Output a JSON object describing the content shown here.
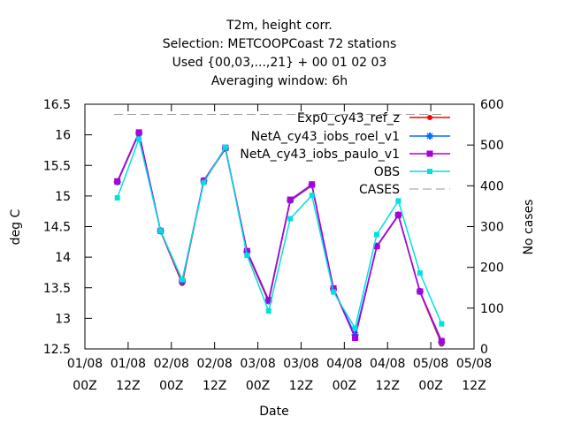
{
  "chart_data": {
    "type": "line",
    "title_lines": [
      "T2m, height corr.",
      "Selection: METCOOPCoast     72 stations",
      "Used {00,03,...,21} + 00 01 02 03",
      "Averaging window:  6h"
    ],
    "xlabel": "Date",
    "ylabel": "deg C",
    "y2label": "No cases",
    "ylim": [
      12.5,
      16.5
    ],
    "y2lim": [
      0,
      600
    ],
    "yticks": [
      "12.5",
      "13",
      "13.5",
      "14",
      "14.5",
      "15",
      "15.5",
      "16",
      "16.5"
    ],
    "y2ticks": [
      "0",
      "100",
      "200",
      "300",
      "400",
      "500",
      "600"
    ],
    "xticks": [
      {
        "hours": 0,
        "line1": "01/08",
        "line2": "00Z"
      },
      {
        "hours": 12,
        "line1": "01/08",
        "line2": "12Z"
      },
      {
        "hours": 24,
        "line1": "02/08",
        "line2": "00Z"
      },
      {
        "hours": 36,
        "line1": "02/08",
        "line2": "12Z"
      },
      {
        "hours": 48,
        "line1": "03/08",
        "line2": "00Z"
      },
      {
        "hours": 60,
        "line1": "03/08",
        "line2": "12Z"
      },
      {
        "hours": 72,
        "line1": "04/08",
        "line2": "00Z"
      },
      {
        "hours": 84,
        "line1": "04/08",
        "line2": "12Z"
      },
      {
        "hours": 96,
        "line1": "05/08",
        "line2": "00Z"
      },
      {
        "hours": 108,
        "line1": "05/08",
        "line2": "12Z"
      }
    ],
    "x_hours": [
      9,
      15,
      21,
      27,
      33,
      39,
      45,
      51,
      57,
      63,
      69,
      75,
      81,
      87,
      93,
      99
    ],
    "series": [
      {
        "name": "Exp0_cy43_ref_z",
        "color": "#ff0000",
        "marker": "circle",
        "values": [
          15.22,
          16.02,
          14.42,
          13.57,
          15.24,
          15.77,
          14.08,
          13.27,
          14.92,
          15.17,
          13.47,
          12.7,
          14.17,
          14.68,
          13.43,
          12.58
        ]
      },
      {
        "name": "NetA_cy43_iobs_roel_v1",
        "color": "#0070ff",
        "marker": "star",
        "values": [
          15.23,
          16.03,
          14.43,
          13.6,
          15.25,
          15.78,
          14.09,
          13.29,
          14.93,
          15.18,
          13.48,
          12.73,
          14.18,
          14.69,
          13.44,
          12.61
        ]
      },
      {
        "name": "NetA_cy43_iobs_paulo_v1",
        "color": "#aa00dd",
        "marker": "square",
        "values": [
          15.24,
          16.04,
          14.43,
          13.61,
          15.25,
          15.79,
          14.1,
          13.3,
          14.94,
          15.19,
          13.49,
          12.68,
          14.18,
          14.69,
          13.44,
          12.63
        ]
      },
      {
        "name": "OBS",
        "color": "#00e0e0",
        "marker": "square-open",
        "values": [
          14.97,
          15.93,
          14.43,
          13.63,
          15.22,
          15.8,
          14.03,
          13.12,
          14.63,
          15.01,
          13.43,
          12.84,
          14.37,
          14.92,
          13.74,
          12.91
        ]
      }
    ],
    "cases": {
      "name": "CASES",
      "color": "#999999",
      "dash": true,
      "y2_value": 575
    },
    "legend_position": "top-right",
    "grid": false
  }
}
